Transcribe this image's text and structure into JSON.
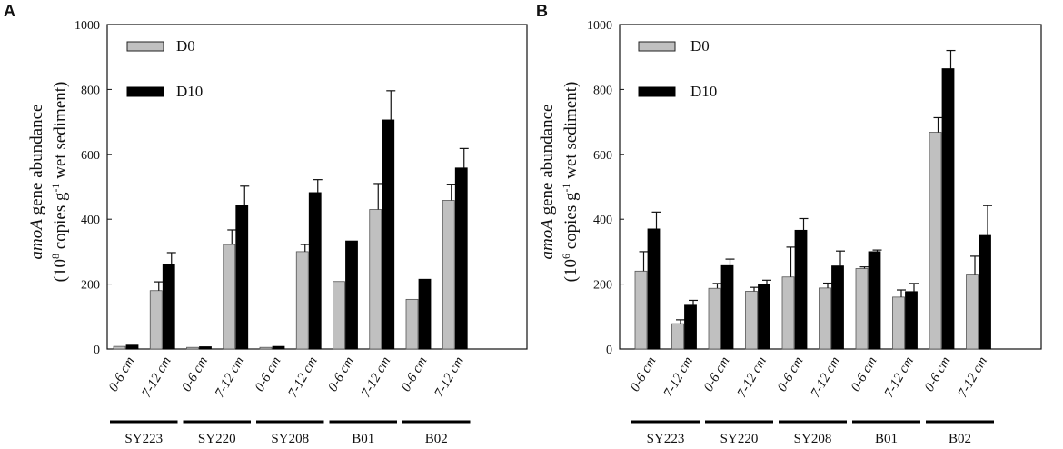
{
  "chart_data": [
    {
      "type": "bar",
      "panel": "A",
      "ylabel_gene": "amoA",
      "ylabel_rest": " gene abundance",
      "ylabel_line2_prefix": "(10",
      "ylabel_exp": "8",
      "ylabel_line2_mid": " copies g",
      "ylabel_sup": "-1",
      "ylabel_line2_suffix": " wet sediment)",
      "ylim": [
        0,
        1000
      ],
      "yticks": [
        "0",
        "200",
        "400",
        "600",
        "800",
        "1000"
      ],
      "categories": [
        "0-6 cm",
        "7-12 cm",
        "0-6 cm",
        "7-12 cm",
        "0-6 cm",
        "7-12 cm",
        "0-6 cm",
        "7-12 cm",
        "0-6 cm",
        "7-12 cm"
      ],
      "groups": [
        "SY223",
        "SY220",
        "SY208",
        "B01",
        "B02"
      ],
      "series": [
        {
          "name": "D0",
          "color": "#c0c0c0",
          "values": [
            8,
            180,
            5,
            322,
            5,
            300,
            208,
            430,
            153,
            458
          ],
          "errors": [
            0,
            27,
            0,
            45,
            0,
            22,
            0,
            80,
            0,
            50
          ]
        },
        {
          "name": "D10",
          "color": "#000000",
          "values": [
            12,
            262,
            7,
            442,
            8,
            482,
            333,
            706,
            215,
            558
          ],
          "errors": [
            0,
            35,
            0,
            60,
            0,
            40,
            0,
            90,
            0,
            60
          ]
        }
      ]
    },
    {
      "type": "bar",
      "panel": "B",
      "ylabel_gene": "amoA",
      "ylabel_rest": " gene abundance",
      "ylabel_line2_prefix": "(10",
      "ylabel_exp": "6",
      "ylabel_line2_mid": " copies g",
      "ylabel_sup": "-1",
      "ylabel_line2_suffix": " wet sediment)",
      "ylim": [
        0,
        1000
      ],
      "yticks": [
        "0",
        "200",
        "400",
        "600",
        "800",
        "1000"
      ],
      "categories": [
        "0-6 cm",
        "7-12 cm",
        "0-6 cm",
        "7-12 cm",
        "0-6 cm",
        "7-12 cm",
        "0-6 cm",
        "7-12 cm",
        "0-6 cm",
        "7-12 cm"
      ],
      "groups": [
        "SY223",
        "SY220",
        "SY208",
        "B01",
        "B02"
      ],
      "series": [
        {
          "name": "D0",
          "color": "#c0c0c0",
          "values": [
            240,
            78,
            187,
            178,
            222,
            188,
            248,
            160,
            668,
            228
          ],
          "errors": [
            60,
            12,
            15,
            12,
            92,
            15,
            5,
            22,
            45,
            58
          ]
        },
        {
          "name": "D10",
          "color": "#000000",
          "values": [
            370,
            135,
            257,
            200,
            366,
            256,
            300,
            177,
            864,
            350
          ],
          "errors": [
            52,
            15,
            20,
            12,
            36,
            46,
            5,
            25,
            56,
            92
          ]
        }
      ]
    }
  ]
}
